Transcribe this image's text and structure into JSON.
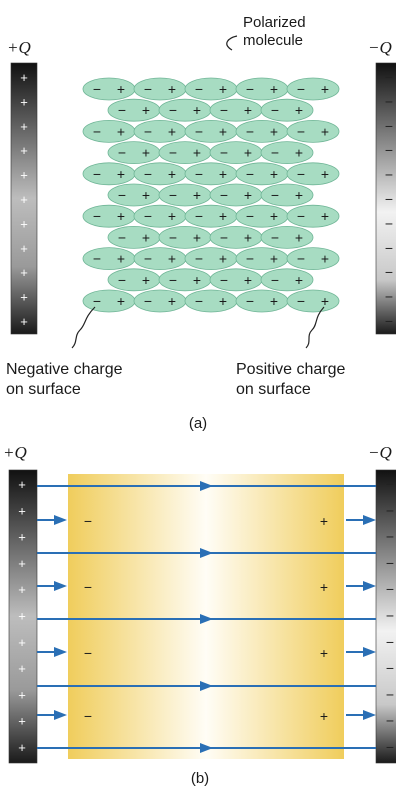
{
  "panel_a": {
    "left_plate_label": "+Q",
    "right_plate_label": "−Q",
    "molecule_label_line1": "Polarized",
    "molecule_label_line2": "molecule",
    "negative_label_line1": "Negative charge",
    "negative_label_line2": "on surface",
    "positive_label_line1": "Positive charge",
    "positive_label_line2": "on surface",
    "caption": "(a)",
    "molecule_signs": {
      "negative": "−",
      "positive": "+"
    },
    "plate_signs": {
      "positive": "+",
      "negative": "−"
    }
  },
  "panel_b": {
    "left_plate_label": "+Q",
    "right_plate_label": "−Q",
    "caption": "(b)",
    "surface_negative": "−",
    "surface_positive": "+",
    "plate_signs": {
      "positive": "+",
      "negative": "−"
    }
  },
  "colors": {
    "molecule_fill": "#a7dcc2",
    "molecule_stroke": "#6fb596",
    "dielectric": "#f3d67a",
    "field_line": "#2a6fb5"
  }
}
